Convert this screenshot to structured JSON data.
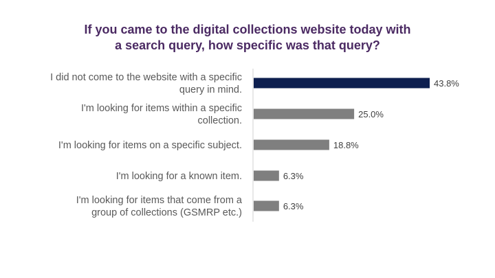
{
  "chart_data": {
    "type": "bar",
    "orientation": "horizontal",
    "title": "If you came to the digital collections website today with a search query, how specific was that query?",
    "title_lines": [
      "If you came to the digital collections website today with",
      "a search query, how specific was that query?"
    ],
    "categories": [
      [
        "I did not come to the website with a specific",
        "query in mind."
      ],
      [
        "I'm looking for items within a specific",
        "collection."
      ],
      [
        "I'm looking for items on a specific subject."
      ],
      [
        "I'm looking for a known item."
      ],
      [
        "I'm looking for items that come from a",
        "group of collections (GSMRP etc.)"
      ]
    ],
    "values": [
      43.8,
      25.0,
      18.8,
      6.3,
      6.3
    ],
    "value_labels": [
      "43.8%",
      "25.0%",
      "18.8%",
      "6.3%",
      "6.3%"
    ],
    "xlim": [
      0,
      70
    ],
    "grid": false,
    "legend": "none",
    "colors": {
      "highlight": "#0d1f4f",
      "default": "#7f7f7f",
      "axis": "#d0d0d0",
      "title": "#4b2a63"
    }
  }
}
